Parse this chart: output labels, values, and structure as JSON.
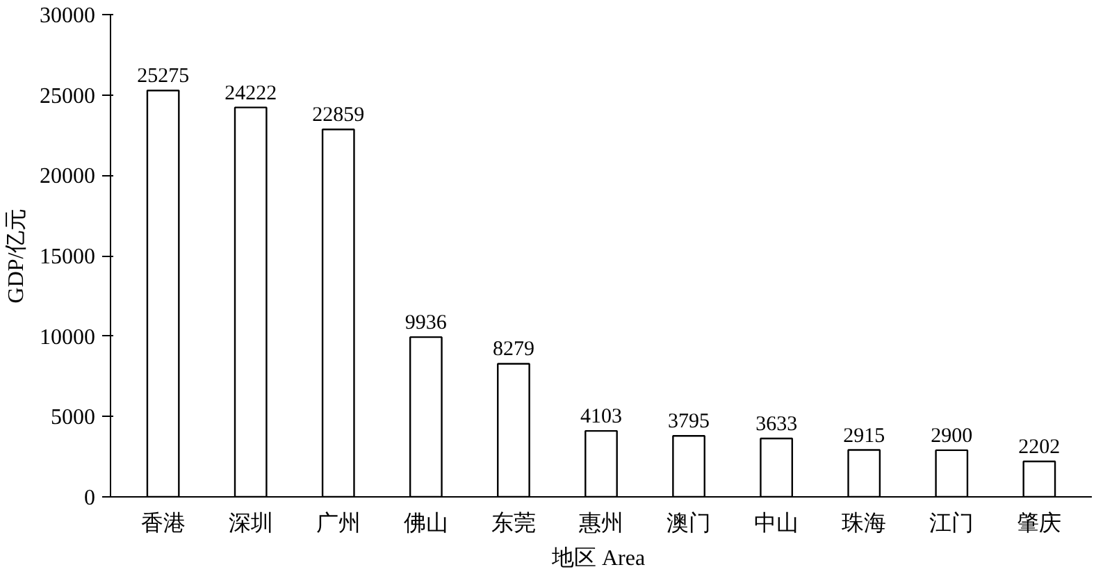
{
  "chart_data": {
    "type": "bar",
    "xlabel": "地区  Area",
    "ylabel": "GDP/亿元",
    "categories": [
      "香港",
      "深圳",
      "广州",
      "佛山",
      "东莞",
      "惠州",
      "澳门",
      "中山",
      "珠海",
      "江门",
      "肇庆"
    ],
    "values": [
      25275,
      24222,
      22859,
      9936,
      8279,
      4103,
      3795,
      3633,
      2915,
      2900,
      2202
    ],
    "color": "#ffffff",
    "data_labels": true,
    "grid": false,
    "ylim": [
      0,
      30000
    ],
    "yticks": [
      0,
      5000,
      10000,
      15000,
      20000,
      25000,
      30000
    ]
  }
}
